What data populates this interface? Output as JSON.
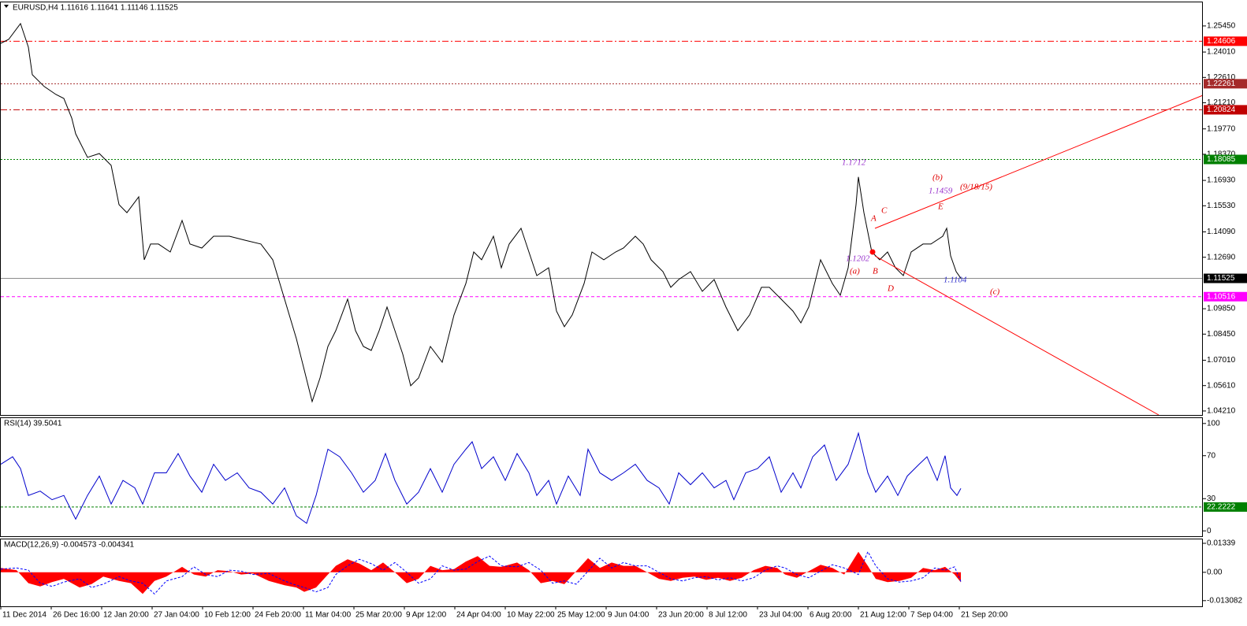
{
  "chart_data": [
    {
      "type": "line",
      "title": "EURUSD,H4  1.11616 1.11641 1.11146 1.11525",
      "color": "#000000",
      "xlim": [
        0,
        1525
      ],
      "ylim": [
        1.0399,
        1.2675
      ],
      "grid": true,
      "xticks": [
        {
          "value": 0,
          "label": "11 Dec 2014"
        },
        {
          "value": 64,
          "label": "26 Dec 16:00"
        },
        {
          "value": 128,
          "label": "12 Jan 20:00"
        },
        {
          "value": 192,
          "label": "27 Jan 04:00"
        },
        {
          "value": 256,
          "label": "10 Feb 12:00"
        },
        {
          "value": 320,
          "label": "24 Feb 20:00"
        },
        {
          "value": 384,
          "label": "11 Mar 04:00"
        },
        {
          "value": 448,
          "label": "25 Mar 20:00"
        },
        {
          "value": 512,
          "label": "9 Apr 12:00"
        },
        {
          "value": 576,
          "label": "24 Apr 04:00"
        },
        {
          "value": 640,
          "label": "10 May 22:00"
        },
        {
          "value": 704,
          "label": "25 May 12:00"
        },
        {
          "value": 768,
          "label": "9 Jun 04:00"
        },
        {
          "value": 832,
          "label": "23 Jun 20:00"
        },
        {
          "value": 896,
          "label": "8 Jul 12:00"
        },
        {
          "value": 960,
          "label": "23 Jul 04:00"
        },
        {
          "value": 1024,
          "label": "6 Aug 20:00"
        },
        {
          "value": 1088,
          "label": "21 Aug 12:00"
        },
        {
          "value": 1152,
          "label": "7 Sep 04:00"
        },
        {
          "value": 1216,
          "label": "21 Sep 20:00"
        }
      ],
      "yticks": [
        {
          "value": 1.0421,
          "label": "1.04210"
        },
        {
          "value": 1.0561,
          "label": "1.05610"
        },
        {
          "value": 1.0701,
          "label": "1.07010"
        },
        {
          "value": 1.0845,
          "label": "1.08450"
        },
        {
          "value": 1.0985,
          "label": "1.09850"
        },
        {
          "value": 1.1269,
          "label": "1.12690"
        },
        {
          "value": 1.1409,
          "label": "1.14090"
        },
        {
          "value": 1.1553,
          "label": "1.15530"
        },
        {
          "value": 1.1693,
          "label": "1.16930"
        },
        {
          "value": 1.1837,
          "label": "1.18370"
        },
        {
          "value": 1.1977,
          "label": "1.19770"
        },
        {
          "value": 1.2121,
          "label": "1.21210"
        },
        {
          "value": 1.2261,
          "label": "1.22610"
        },
        {
          "value": 1.2401,
          "label": "1.24010"
        },
        {
          "value": 1.2545,
          "label": "1.25450"
        }
      ],
      "levels": [
        {
          "value": 1.24606,
          "color": "#ff0000",
          "dash": "8 3 2 3"
        },
        {
          "value": 1.22261,
          "color": "#a52a2a",
          "dash": "2 2"
        },
        {
          "value": 1.20824,
          "color": "#c00000",
          "dash": "8 3 2 3"
        },
        {
          "value": 1.18085,
          "color": "#008000",
          "dash": "2 2"
        },
        {
          "value": 1.11525,
          "color": "#000000",
          "dash": "none"
        },
        {
          "value": 1.10516,
          "color": "#ff00ff",
          "dash": "4 3"
        }
      ],
      "annotations": [
        {
          "text": "1.1712",
          "color": "#9932cc"
        },
        {
          "text": "(b)",
          "color": "#e00000"
        },
        {
          "text": "1.1459",
          "color": "#9932cc"
        },
        {
          "text": "(9/18/15)",
          "color": "#e00000"
        },
        {
          "text": "E",
          "color": "#e00000"
        },
        {
          "text": "A",
          "color": "#e00000"
        },
        {
          "text": "C",
          "color": "#e00000"
        },
        {
          "text": "1.1202",
          "color": "#9932cc"
        },
        {
          "text": "(a)",
          "color": "#e00000"
        },
        {
          "text": "B",
          "color": "#e00000"
        },
        {
          "text": "D",
          "color": "#e00000"
        },
        {
          "text": "1.1104",
          "color": "#3333cc"
        },
        {
          "text": "(c)",
          "color": "#e00000"
        }
      ],
      "x": [
        0,
        10,
        25,
        35,
        40,
        55,
        70,
        80,
        90,
        95,
        110,
        125,
        140,
        150,
        160,
        175,
        182,
        190,
        200,
        215,
        230,
        240,
        255,
        270,
        290,
        310,
        330,
        345,
        360,
        375,
        385,
        395,
        405,
        415,
        425,
        440,
        450,
        460,
        470,
        480,
        490,
        500,
        510,
        520,
        530,
        545,
        560,
        575,
        590,
        600,
        610,
        625,
        635,
        645,
        660,
        670,
        680,
        695,
        705,
        715,
        725,
        740,
        750,
        765,
        780,
        790,
        805,
        815,
        825,
        840,
        850,
        860,
        875,
        890,
        905,
        920,
        935,
        950,
        965,
        975,
        990,
        1005,
        1015,
        1025,
        1040,
        1055,
        1065,
        1075,
        1085,
        1088,
        1095,
        1105,
        1115,
        1125,
        1135,
        1145,
        1155,
        1170,
        1180,
        1195,
        1200,
        1205,
        1212,
        1218
      ],
      "values": [
        1.2449,
        1.2471,
        1.2558,
        1.2428,
        1.2276,
        1.2211,
        1.2167,
        1.2145,
        1.2037,
        1.195,
        1.182,
        1.1841,
        1.1776,
        1.1559,
        1.1515,
        1.1602,
        1.1255,
        1.1342,
        1.1342,
        1.1298,
        1.1472,
        1.1342,
        1.132,
        1.1385,
        1.1385,
        1.1363,
        1.1342,
        1.1255,
        1.1038,
        1.082,
        1.0647,
        1.0473,
        1.0603,
        1.0777,
        1.0864,
        1.1038,
        1.0864,
        1.0777,
        1.0755,
        1.0864,
        1.0994,
        1.0864,
        1.0734,
        1.056,
        1.0603,
        1.0777,
        1.069,
        1.0951,
        1.1124,
        1.1298,
        1.1255,
        1.1385,
        1.1211,
        1.1342,
        1.1429,
        1.1298,
        1.1168,
        1.1211,
        1.0972,
        1.0886,
        1.0951,
        1.1124,
        1.1298,
        1.1255,
        1.1298,
        1.132,
        1.1385,
        1.1342,
        1.1255,
        1.119,
        1.1103,
        1.1146,
        1.119,
        1.1081,
        1.1146,
        1.0994,
        1.0864,
        1.0951,
        1.1103,
        1.1103,
        1.1038,
        1.0972,
        1.0907,
        1.0994,
        1.1255,
        1.1124,
        1.1059,
        1.1211,
        1.1559,
        1.1712,
        1.1515,
        1.1298,
        1.1255,
        1.1298,
        1.1211,
        1.1168,
        1.1298,
        1.1342,
        1.1342,
        1.1385,
        1.1429,
        1.1277,
        1.119,
        1.1153
      ]
    },
    {
      "type": "line",
      "title": "RSI(14) 39.5041",
      "color": "#0000cc",
      "xlim": [
        0,
        1525
      ],
      "ylim": [
        -5,
        105
      ],
      "yticks": [
        0,
        30,
        70,
        100
      ],
      "grid": false,
      "levels": [
        {
          "value": 22.2222,
          "color": "#008000",
          "dash": "3 2"
        }
      ],
      "x": [
        0,
        15,
        25,
        35,
        50,
        65,
        80,
        95,
        110,
        125,
        140,
        155,
        170,
        180,
        195,
        210,
        225,
        240,
        255,
        270,
        285,
        300,
        315,
        330,
        345,
        360,
        375,
        388,
        400,
        415,
        430,
        445,
        460,
        475,
        488,
        500,
        515,
        530,
        545,
        560,
        575,
        590,
        598,
        610,
        625,
        640,
        655,
        670,
        680,
        695,
        705,
        720,
        735,
        745,
        760,
        775,
        790,
        805,
        820,
        835,
        848,
        860,
        875,
        890,
        905,
        920,
        930,
        945,
        960,
        975,
        990,
        1005,
        1015,
        1030,
        1045,
        1060,
        1075,
        1088,
        1100,
        1110,
        1125,
        1138,
        1150,
        1165,
        1175,
        1188,
        1198,
        1205,
        1213,
        1218
      ],
      "values": [
        62,
        69,
        58,
        33,
        37,
        29,
        33,
        11,
        33,
        51,
        25,
        47,
        40,
        25,
        54,
        54,
        72,
        51,
        36,
        62,
        47,
        54,
        40,
        36,
        25,
        40,
        14,
        7,
        33,
        76,
        69,
        54,
        36,
        47,
        72,
        47,
        25,
        36,
        58,
        36,
        62,
        76,
        83,
        58,
        69,
        47,
        72,
        54,
        33,
        47,
        25,
        51,
        33,
        76,
        54,
        47,
        54,
        62,
        47,
        40,
        25,
        54,
        43,
        54,
        40,
        47,
        29,
        54,
        58,
        69,
        36,
        54,
        40,
        69,
        80,
        47,
        62,
        91,
        54,
        36,
        51,
        33,
        51,
        62,
        69,
        47,
        70,
        40,
        33,
        39.5
      ]
    },
    {
      "type": "macd",
      "title": "MACD(12,26,9) -0.004573 -0.004341",
      "color": "#ff0000",
      "signal_color": "#0000ff",
      "xlim": [
        0,
        1525
      ],
      "ylim": [
        -0.0157,
        0.0152
      ],
      "grid": false,
      "yticks": [
        {
          "value": -0.013082,
          "label": "-0.013082"
        },
        {
          "value": 0,
          "label": "0.00"
        },
        {
          "value": 0.01339,
          "label": "0.01339"
        }
      ],
      "x": [
        0,
        20,
        35,
        50,
        65,
        80,
        100,
        115,
        130,
        150,
        165,
        180,
        195,
        210,
        230,
        245,
        260,
        275,
        290,
        305,
        320,
        340,
        360,
        375,
        385,
        400,
        415,
        425,
        440,
        455,
        470,
        485,
        500,
        515,
        530,
        545,
        560,
        575,
        590,
        605,
        620,
        635,
        655,
        670,
        685,
        700,
        715,
        730,
        745,
        760,
        775,
        790,
        805,
        820,
        835,
        850,
        865,
        880,
        895,
        910,
        925,
        940,
        955,
        970,
        985,
        995,
        1010,
        1025,
        1040,
        1055,
        1070,
        1088,
        1100,
        1110,
        1125,
        1140,
        1155,
        1170,
        1185,
        1198,
        1210,
        1218
      ],
      "values": [
        0.002,
        0.001,
        -0.005,
        -0.0065,
        -0.0045,
        -0.003,
        -0.007,
        -0.0055,
        -0.002,
        -0.004,
        -0.005,
        -0.01,
        -0.004,
        -0.002,
        0.0025,
        -0.001,
        -0.002,
        0.001,
        0.0005,
        -0.001,
        -0.0005,
        -0.004,
        -0.006,
        -0.007,
        -0.009,
        -0.007,
        -0.001,
        0.003,
        0.006,
        0.004,
        0.001,
        0.0045,
        0.0,
        -0.005,
        -0.003,
        0.003,
        0.001,
        0.0015,
        0.005,
        0.0075,
        0.003,
        0.0025,
        0.0045,
        0.001,
        -0.005,
        -0.004,
        -0.0055,
        0.0005,
        0.0065,
        0.002,
        0.0045,
        0.003,
        0.003,
        0.0,
        -0.003,
        -0.004,
        -0.0025,
        -0.002,
        -0.0035,
        -0.0025,
        -0.004,
        -0.0025,
        0.001,
        0.003,
        0.002,
        -0.001,
        -0.0025,
        0.0005,
        0.0035,
        0.002,
        -0.001,
        0.0095,
        0.003,
        -0.003,
        -0.0045,
        -0.004,
        -0.0025,
        0.002,
        0.001,
        0.0025,
        -0.001,
        -0.0046
      ],
      "signal": [
        0.0015,
        0.002,
        0.001,
        -0.005,
        -0.0065,
        -0.0045,
        -0.003,
        -0.007,
        -0.0055,
        -0.002,
        -0.004,
        -0.005,
        -0.01,
        -0.004,
        -0.002,
        0.0025,
        -0.001,
        -0.002,
        0.001,
        0.0005,
        -0.001,
        -0.0005,
        -0.004,
        -0.006,
        -0.007,
        -0.009,
        -0.007,
        -0.001,
        0.003,
        0.006,
        0.004,
        0.001,
        0.0045,
        0.0,
        -0.005,
        -0.003,
        0.003,
        0.001,
        0.0015,
        0.005,
        0.0075,
        0.003,
        0.0025,
        0.0045,
        0.001,
        -0.005,
        -0.004,
        -0.0055,
        0.0005,
        0.0065,
        0.002,
        0.0045,
        0.003,
        0.003,
        0.0,
        -0.003,
        -0.004,
        -0.0025,
        -0.002,
        -0.0035,
        -0.0025,
        -0.004,
        -0.0025,
        0.001,
        0.003,
        0.002,
        -0.001,
        -0.0025,
        0.0005,
        0.0035,
        0.002,
        -0.001,
        0.0095,
        0.003,
        -0.003,
        -0.0045,
        -0.004,
        -0.0025,
        0.002,
        0.001,
        0.0025,
        -0.0043
      ]
    }
  ]
}
